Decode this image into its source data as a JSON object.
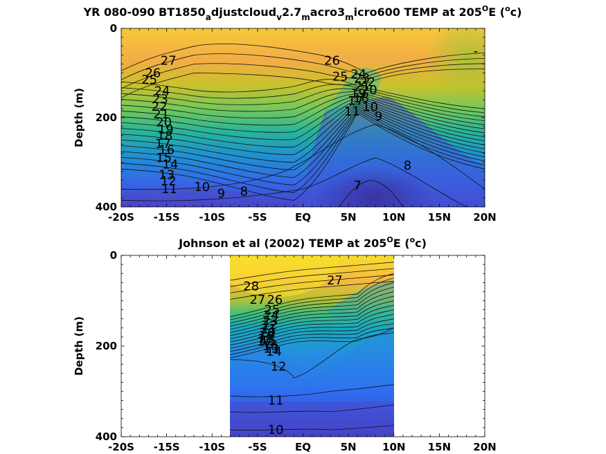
{
  "chart_data": [
    {
      "type": "heatmap",
      "title": "YR 080-090 BT1850_adjustcloud_v2.7_macro3_micro600 TEMP at 205°E (°c)",
      "title_parts": [
        "YR 080-090 BT1850",
        "a",
        "djustcloud",
        "v",
        "2.7",
        "m",
        "acro3",
        "m",
        "icro600 TEMP at 205",
        "O",
        "E (",
        "o",
        "c)"
      ],
      "ylabel": "Depth (m)",
      "xlim": [
        -20,
        20
      ],
      "ylim": [
        0,
        400
      ],
      "y_reversed": true,
      "x_ticks": [
        -20,
        -15,
        -10,
        -5,
        0,
        5,
        10,
        15,
        20
      ],
      "x_tick_labels": [
        "-20S",
        "-15S",
        "-10S",
        "-5S",
        "EQ",
        "5N",
        "10N",
        "15N",
        "20N"
      ],
      "y_ticks": [
        0,
        200,
        400
      ],
      "y_tick_labels": [
        "0",
        "200",
        "400"
      ],
      "data_extent_x": [
        -20,
        20
      ],
      "contour_interval": 1,
      "contour_labels": [
        {
          "text": "27",
          "x": -14.8,
          "y": 72
        },
        {
          "text": "26",
          "x": -16.5,
          "y": 100
        },
        {
          "text": "25",
          "x": -16.9,
          "y": 115
        },
        {
          "text": "24",
          "x": -15.5,
          "y": 140
        },
        {
          "text": "23",
          "x": -15.7,
          "y": 158
        },
        {
          "text": "22",
          "x": -15.8,
          "y": 175
        },
        {
          "text": "21",
          "x": -15.6,
          "y": 192
        },
        {
          "text": "20",
          "x": -15.3,
          "y": 210
        },
        {
          "text": "19",
          "x": -15.1,
          "y": 226
        },
        {
          "text": "18",
          "x": -15.2,
          "y": 240
        },
        {
          "text": "17",
          "x": -15.4,
          "y": 258
        },
        {
          "text": "16",
          "x": -15.0,
          "y": 272
        },
        {
          "text": "15",
          "x": -15.3,
          "y": 290
        },
        {
          "text": "14",
          "x": -14.6,
          "y": 305
        },
        {
          "text": "13",
          "x": -15.0,
          "y": 328
        },
        {
          "text": "12",
          "x": -14.8,
          "y": 342
        },
        {
          "text": "11",
          "x": -14.7,
          "y": 360
        },
        {
          "text": "10",
          "x": -11.1,
          "y": 355
        },
        {
          "text": "9",
          "x": -9.0,
          "y": 370
        },
        {
          "text": "8",
          "x": -6.5,
          "y": 365
        },
        {
          "text": "7",
          "x": 6.0,
          "y": 352
        },
        {
          "text": "8",
          "x": 11.5,
          "y": 307
        },
        {
          "text": "9",
          "x": 8.3,
          "y": 197
        },
        {
          "text": "10",
          "x": 7.4,
          "y": 176
        },
        {
          "text": "11",
          "x": 5.4,
          "y": 186
        },
        {
          "text": "26",
          "x": 3.2,
          "y": 72
        },
        {
          "text": "25",
          "x": 4.1,
          "y": 108
        },
        {
          "text": "24",
          "x": 6.1,
          "y": 102
        },
        {
          "text": "23",
          "x": 6.5,
          "y": 112
        },
        {
          "text": "22",
          "x": 7.1,
          "y": 120
        },
        {
          "text": "21",
          "x": 6.5,
          "y": 130
        },
        {
          "text": "20",
          "x": 7.3,
          "y": 138
        },
        {
          "text": "19",
          "x": 6.1,
          "y": 146
        },
        {
          "text": "18",
          "x": 6.4,
          "y": 156
        },
        {
          "text": "17",
          "x": 5.8,
          "y": 162
        },
        {
          "text": "-",
          "x": 19.0,
          "y": 50
        }
      ],
      "colormap": "parula"
    },
    {
      "type": "heatmap",
      "title": "Johnson et al (2002) TEMP at 205°E (°c)",
      "title_parts": [
        "Johnson et al (2002) TEMP at 205",
        "O",
        "E (",
        "o",
        "c)"
      ],
      "ylabel": "Depth (m)",
      "xlim": [
        -20,
        20
      ],
      "ylim": [
        0,
        400
      ],
      "y_reversed": true,
      "x_ticks": [
        -20,
        -15,
        -10,
        -5,
        0,
        5,
        10,
        15,
        20
      ],
      "x_tick_labels": [
        "-20S",
        "-15S",
        "-10S",
        "-5S",
        "EQ",
        "5N",
        "10N",
        "15N",
        "20N"
      ],
      "y_ticks": [
        0,
        200,
        400
      ],
      "y_tick_labels": [
        "0",
        "200",
        "400"
      ],
      "data_extent_x": [
        -8,
        10
      ],
      "contour_interval": 1,
      "contour_labels": [
        {
          "text": "28",
          "x": -5.7,
          "y": 68
        },
        {
          "text": "27",
          "x": -5.0,
          "y": 98
        },
        {
          "text": "26",
          "x": -3.1,
          "y": 98
        },
        {
          "text": "27",
          "x": 3.5,
          "y": 55
        },
        {
          "text": "25",
          "x": -3.4,
          "y": 120
        },
        {
          "text": "24",
          "x": -3.5,
          "y": 132
        },
        {
          "text": "23",
          "x": -3.6,
          "y": 144
        },
        {
          "text": "22",
          "x": -3.7,
          "y": 154
        },
        {
          "text": "21",
          "x": -3.8,
          "y": 162
        },
        {
          "text": "20",
          "x": -3.9,
          "y": 170
        },
        {
          "text": "19",
          "x": -4.0,
          "y": 177
        },
        {
          "text": "18",
          "x": -4.1,
          "y": 183
        },
        {
          "text": "17",
          "x": -4.2,
          "y": 190
        },
        {
          "text": "16",
          "x": -3.6,
          "y": 200
        },
        {
          "text": "15",
          "x": -3.8,
          "y": 188
        },
        {
          "text": "14",
          "x": -3.2,
          "y": 212
        },
        {
          "text": "13",
          "x": -3.5,
          "y": 205
        },
        {
          "text": "12",
          "x": -2.7,
          "y": 245
        },
        {
          "text": "11",
          "x": -3.0,
          "y": 320
        },
        {
          "text": "10",
          "x": -3.0,
          "y": 385
        }
      ],
      "colormap": "parula"
    }
  ]
}
